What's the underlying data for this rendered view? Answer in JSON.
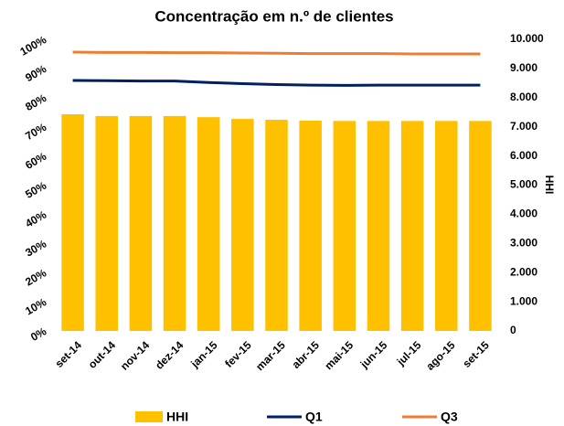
{
  "chart_data": {
    "type": "bar_line",
    "title": "Concentração em n.º de clientes",
    "categories": [
      "set-14",
      "out-14",
      "nov-14",
      "dez-14",
      "jan-15",
      "fev-15",
      "mar-15",
      "abr-15",
      "mai-15",
      "jun-15",
      "jul-15",
      "ago-15",
      "set-15"
    ],
    "series": [
      {
        "name": "HHI",
        "type": "bar",
        "axis": "y2",
        "color": "#ffc000",
        "values": [
          7430,
          7370,
          7370,
          7370,
          7330,
          7270,
          7240,
          7210,
          7200,
          7200,
          7200,
          7200,
          7200
        ]
      },
      {
        "name": "Q1",
        "type": "line",
        "color": "#002060",
        "values": [
          85.9,
          85.8,
          85.7,
          85.7,
          85.2,
          84.8,
          84.5,
          84.3,
          84.2,
          84.3,
          84.3,
          84.3,
          84.3
        ]
      },
      {
        "name": "Q3",
        "type": "line",
        "color": "#ed7d31",
        "values": [
          95.6,
          95.5,
          95.5,
          95.4,
          95.4,
          95.3,
          95.2,
          95.1,
          95.1,
          95.1,
          95.0,
          95.0,
          95.0
        ]
      }
    ],
    "ylim": [
      0,
      100
    ],
    "yticks": [
      {
        "value": 0,
        "label": "0%"
      },
      {
        "value": 10,
        "label": "10%"
      },
      {
        "value": 20,
        "label": "20%"
      },
      {
        "value": 30,
        "label": "30%"
      },
      {
        "value": 40,
        "label": "40%"
      },
      {
        "value": 50,
        "label": "50%"
      },
      {
        "value": 60,
        "label": "60%"
      },
      {
        "value": 70,
        "label": "70%"
      },
      {
        "value": 80,
        "label": "80%"
      },
      {
        "value": 90,
        "label": "90%"
      },
      {
        "value": 100,
        "label": "100%"
      }
    ],
    "y2label": "HHI",
    "y2lim": [
      0,
      10000
    ],
    "y2ticks": [
      0,
      {
        "value": 1000,
        "label": "1.000"
      },
      {
        "value": 2000,
        "label": "2.000"
      },
      {
        "value": 3000,
        "label": "3.000"
      },
      {
        "value": 4000,
        "label": "4.000"
      },
      {
        "value": 5000,
        "label": "5.000"
      },
      {
        "value": 6000,
        "label": "6.000"
      },
      {
        "value": 7000,
        "label": "7.000"
      },
      {
        "value": 8000,
        "label": "8.000"
      },
      {
        "value": 9000,
        "label": "9.000"
      },
      {
        "value": 10000,
        "label": "10.000"
      }
    ]
  }
}
